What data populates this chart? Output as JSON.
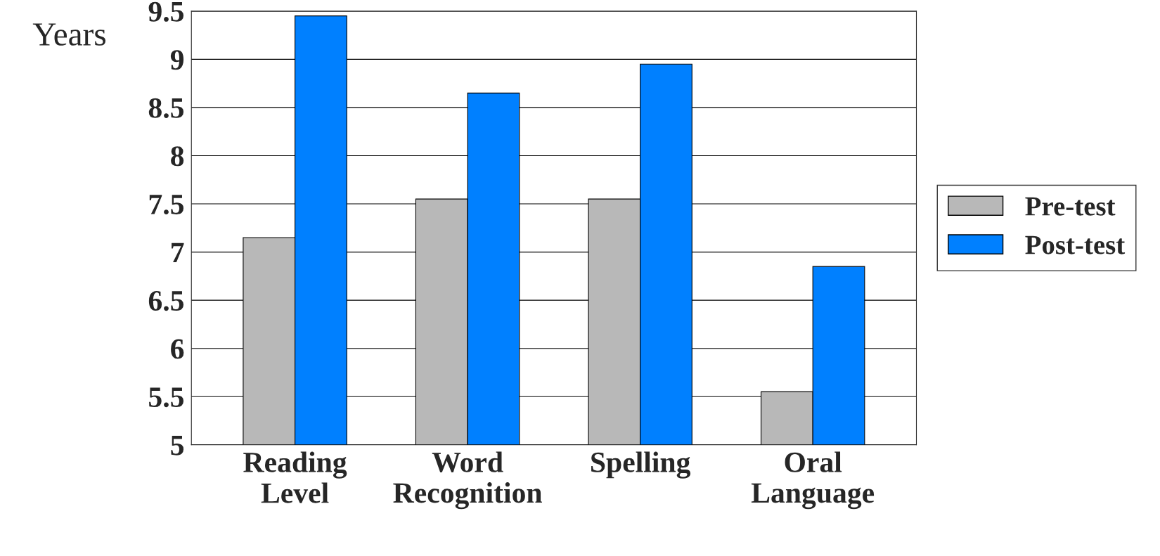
{
  "chart_data": {
    "type": "bar",
    "ylabel": "Years",
    "categories": [
      "Reading\nLevel",
      "Word\nRecognition",
      "Spelling",
      "Oral\nLanguage"
    ],
    "series": [
      {
        "name": "Pre-test",
        "color": "#b8b8b8",
        "values": [
          7.15,
          7.55,
          7.55,
          5.55
        ]
      },
      {
        "name": "Post-test",
        "color": "#0080ff",
        "values": [
          9.45,
          8.65,
          8.95,
          6.85
        ]
      }
    ],
    "ylim": [
      5,
      9.5
    ],
    "yticks": [
      5,
      5.5,
      6,
      6.5,
      7,
      7.5,
      8,
      8.5,
      9,
      9.5
    ],
    "grid": "y",
    "legend": "right"
  }
}
